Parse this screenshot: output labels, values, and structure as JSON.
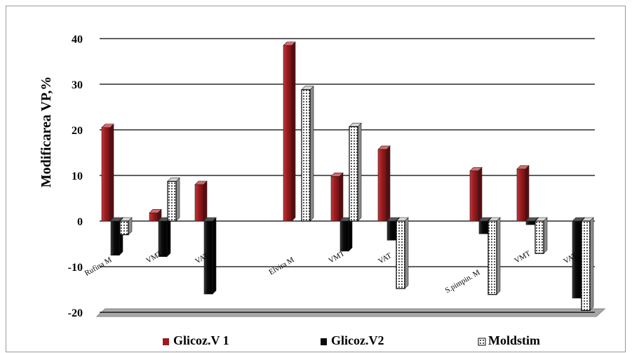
{
  "chart_data": {
    "type": "bar",
    "title": "",
    "ylabel": "Modificarea VP,%",
    "xlabel": "",
    "ylim": [
      -20,
      40
    ],
    "yticks": [
      40,
      30,
      20,
      10,
      0,
      -10,
      -20
    ],
    "grid": true,
    "legend_position": "bottom",
    "categories": [
      "Rufina M",
      "VMT",
      "VAT",
      "Elvira M",
      "VMT",
      "VAT",
      "S.pimpin. M",
      "VMT",
      "VAT"
    ],
    "series": [
      {
        "name": "Glicoz.V 1",
        "color": "#9b1b1f",
        "pattern": "solid",
        "values": [
          20.5,
          1.8,
          8.0,
          38.5,
          9.8,
          15.7,
          11.0,
          11.4,
          0
        ]
      },
      {
        "name": "Glicoz.V2",
        "color": "#0a0a0a",
        "pattern": "solid",
        "values": [
          -7.5,
          -7.8,
          -16.0,
          0,
          -6.6,
          -4.2,
          -2.8,
          -0.8,
          -16.9
        ]
      },
      {
        "name": "Moldstim",
        "color": "#bfbfbf",
        "pattern": "dotted",
        "values": [
          -3.0,
          8.7,
          0,
          28.8,
          20.7,
          -14.8,
          -16.1,
          -7.1,
          -19.6
        ]
      }
    ]
  }
}
